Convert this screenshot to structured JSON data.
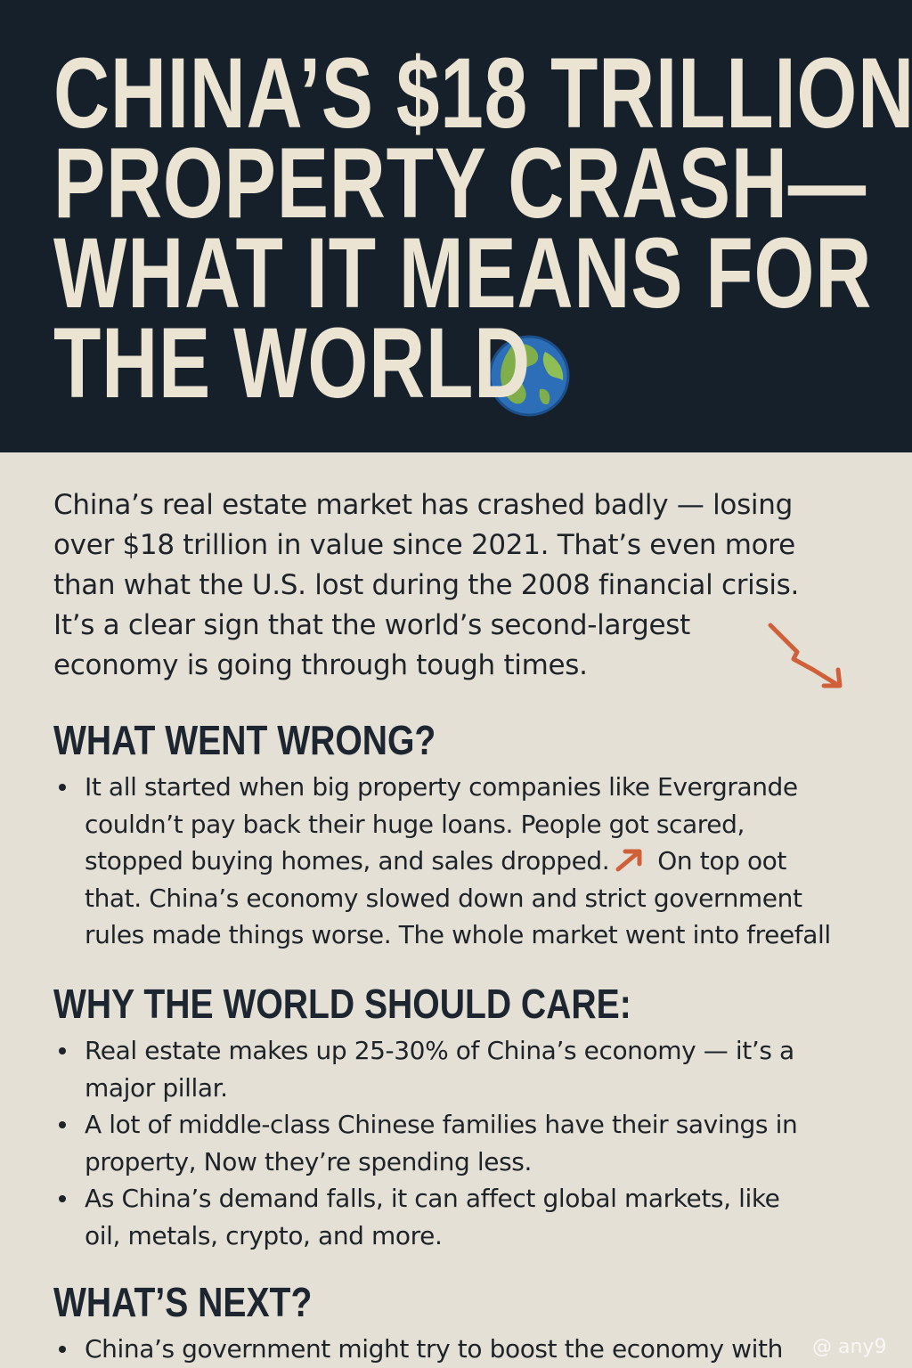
{
  "header": {
    "title_lines": [
      "CHINA’S $18 TRILLION",
      "PROPERTY CRASH—",
      "WHAT IT MEANS FOR",
      "THE WORLD"
    ]
  },
  "intro": {
    "lines": [
      "China’s real estate market has crashed badly — losing",
      "over $18 trillion in value since 2021. That’s even more",
      "than what the U.S. lost during the 2008 financial crisis.",
      "It’s a clear sign that the world’s second-largest",
      "economy is going through tough times."
    ]
  },
  "sections": [
    {
      "heading": "WHAT WENT WRONG?",
      "bullets": [
        {
          "lines": [
            "It all started when big property companies like Evergrande",
            "couldn’t pay back their huge loans. People got scared,",
            [
              "stopped buying homes, and sales dropped.",
              "On top oot"
            ],
            "that. China’s economy slowed down and strict government",
            "rules made things worse. The whole market went into freefall"
          ]
        }
      ]
    },
    {
      "heading": "WHY THE WORLD SHOULD CARE:",
      "bullets": [
        {
          "lines": [
            "Real estate makes up 25-30% of China’s economy — it’s a",
            "major pillar."
          ]
        },
        {
          "lines": [
            "A lot of middle-class Chinese families have their savings in",
            "property, Now they’re spending less."
          ]
        },
        {
          "lines": [
            "As China’s demand falls, it can affect global markets, like",
            "oil, metals, crypto, and more."
          ]
        }
      ]
    },
    {
      "heading": "WHAT’S NEXT?",
      "bullets": [
        {
          "lines": [
            "China’s government might try to boost the economy with"
          ]
        }
      ]
    }
  ],
  "watermark": "@ any9"
}
